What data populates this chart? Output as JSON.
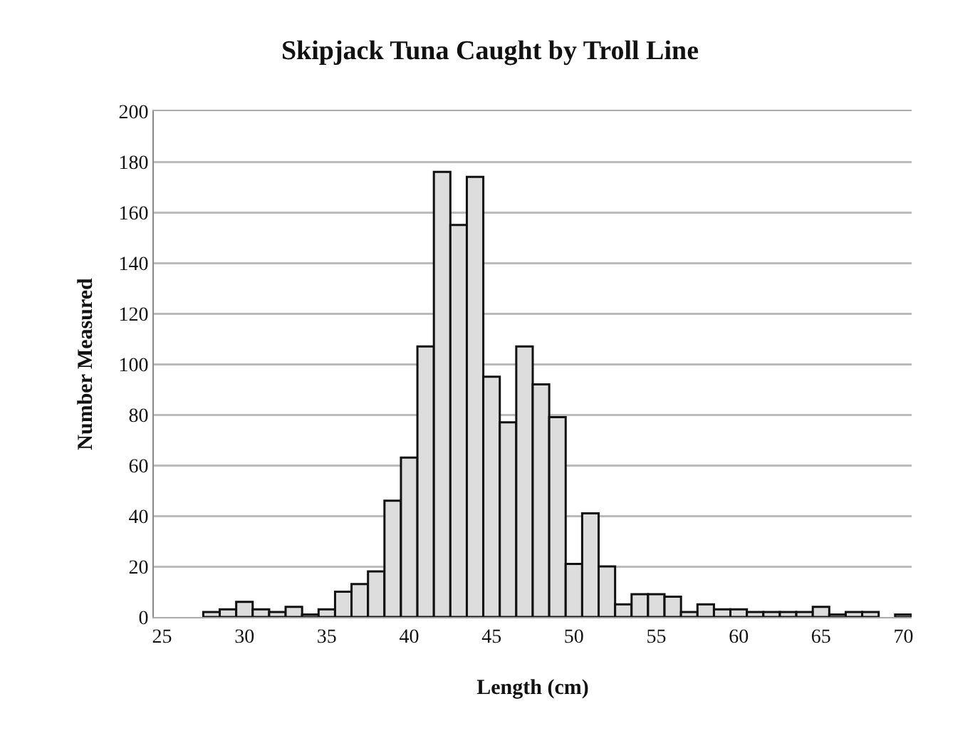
{
  "chart_data": {
    "type": "histogram",
    "title": "Skipjack Tuna Caught by Troll Line",
    "xlabel": "Length (cm)",
    "ylabel": "Number Measured",
    "bins": [
      27.5,
      28.5,
      29.5,
      30.5,
      31.5,
      32.5,
      33.5,
      34.5,
      35.5,
      36.5,
      37.5,
      38.5,
      39.5,
      40.5,
      41.5,
      42.5,
      43.5,
      44.5,
      45.5,
      46.5,
      47.5,
      48.5,
      49.5,
      50.5,
      51.5,
      52.5,
      53.5,
      54.5,
      55.5,
      56.5,
      57.5,
      58.5,
      59.5,
      60.5,
      61.5,
      62.5,
      63.5,
      64.5,
      65.5,
      66.5,
      67.5,
      68.5,
      69.5,
      70.5
    ],
    "values": [
      2,
      3,
      6,
      3,
      2,
      4,
      1,
      3,
      10,
      13,
      18,
      46,
      63,
      107,
      176,
      155,
      174,
      95,
      77,
      107,
      92,
      79,
      21,
      41,
      20,
      5,
      9,
      9,
      8,
      2,
      5,
      3,
      3,
      2,
      2,
      2,
      2,
      4,
      1,
      2,
      2,
      null,
      1
    ],
    "color": "#dddddd",
    "xlim": [
      24.5,
      70.5
    ],
    "xticks": [
      25,
      30,
      35,
      40,
      45,
      50,
      55,
      60,
      65,
      70
    ],
    "ylim": [
      0,
      200
    ],
    "yticks": [
      0,
      20,
      40,
      60,
      80,
      100,
      120,
      140,
      160,
      180,
      200
    ],
    "grid": "y"
  }
}
